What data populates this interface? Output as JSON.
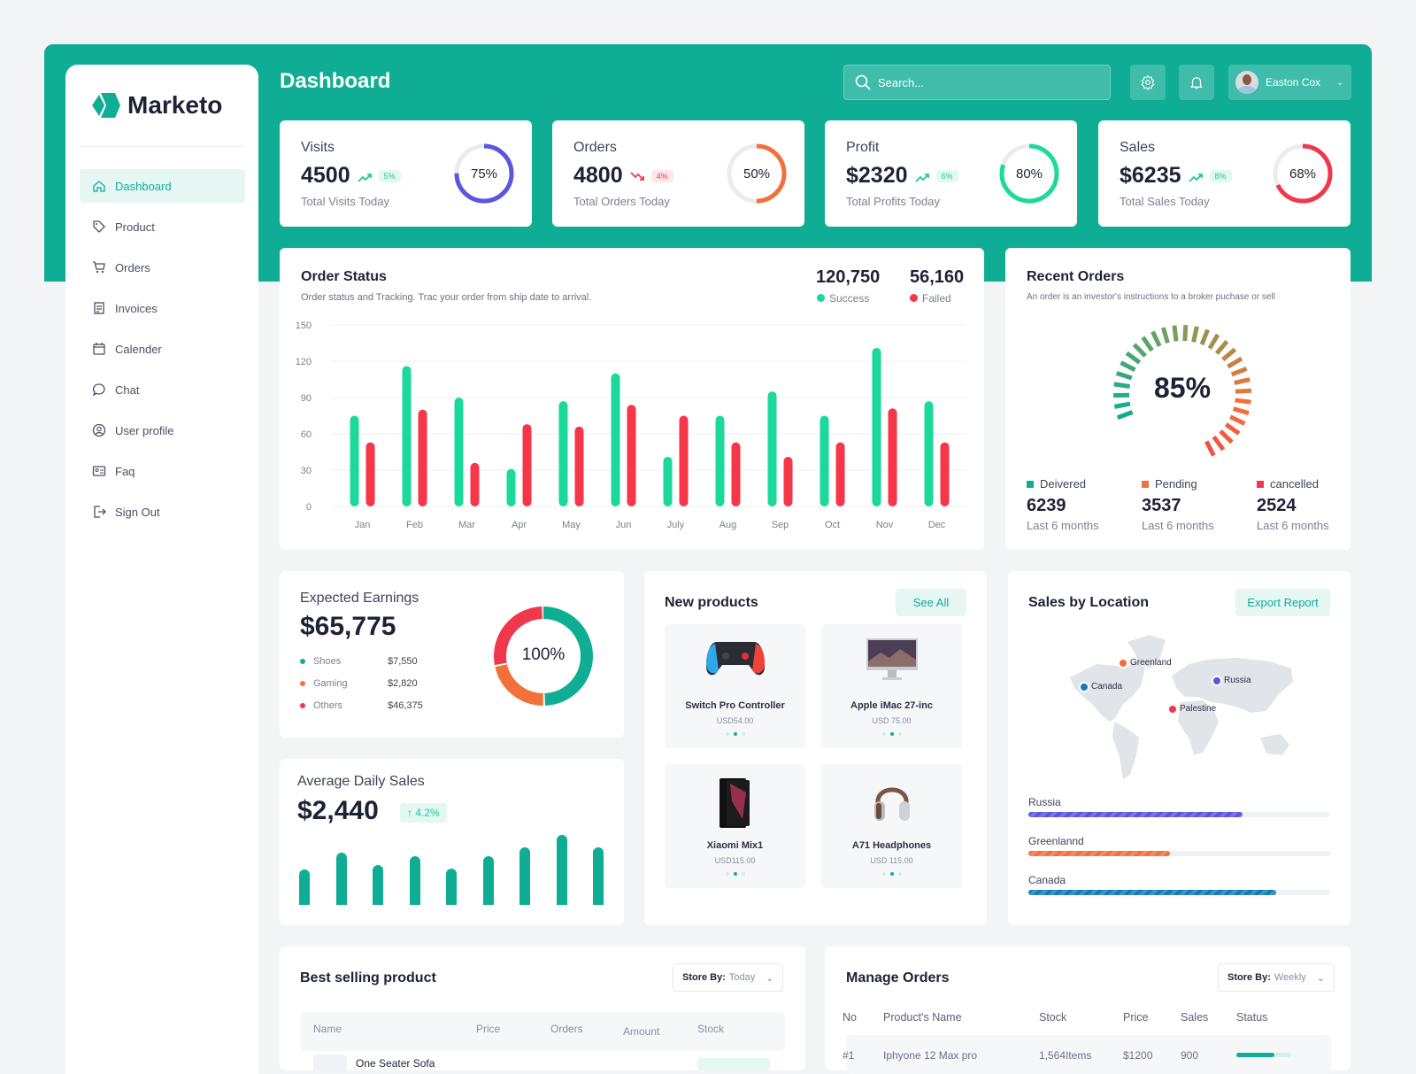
{
  "brand": {
    "name": "Marketo",
    "accent": "#10ad95"
  },
  "header": {
    "title": "Dashboard",
    "search_placeholder": "Search...",
    "user_name": "Easton Cox"
  },
  "sidebar": {
    "items": [
      {
        "label": "Dashboard",
        "icon": "home-icon",
        "active": true
      },
      {
        "label": "Product",
        "icon": "tag-icon"
      },
      {
        "label": "Orders",
        "icon": "cart-icon"
      },
      {
        "label": "Invoices",
        "icon": "invoice-icon"
      },
      {
        "label": "Calender",
        "icon": "calendar-icon"
      },
      {
        "label": "Chat",
        "icon": "chat-icon"
      },
      {
        "label": "User profile",
        "icon": "user-icon"
      },
      {
        "label": "Faq",
        "icon": "faq-icon"
      },
      {
        "label": "Sign Out",
        "icon": "signout-icon"
      }
    ]
  },
  "stats": [
    {
      "label": "Visits",
      "value": "4500",
      "trend": "up",
      "change": "5%",
      "sub": "Total Visits Today",
      "percent": 75,
      "percent_label": "75%",
      "color": "#5b55e0"
    },
    {
      "label": "Orders",
      "value": "4800",
      "trend": "down",
      "change": "4%",
      "sub": "Total Orders Today",
      "percent": 50,
      "percent_label": "50%",
      "color": "#f2713a"
    },
    {
      "label": "Profit",
      "value": "$2320",
      "trend": "up",
      "change": "6%",
      "sub": "Total Profits Today",
      "percent": 80,
      "percent_label": "80%",
      "color": "#1ed99a"
    },
    {
      "label": "Sales",
      "value": "$6235",
      "trend": "up",
      "change": "8%",
      "sub": "Total Sales Today",
      "percent": 68,
      "percent_label": "68%",
      "color": "#f0384c"
    }
  ],
  "order_status": {
    "title": "Order Status",
    "subtitle": "Order status and Tracking. Trac your order from ship date to arrival.",
    "success_total": "120,750",
    "success_label": "Success",
    "failed_total": "56,160",
    "failed_label": "Failed"
  },
  "chart_data": {
    "type": "bar",
    "categories": [
      "Jan",
      "Feb",
      "Mar",
      "Apr",
      "May",
      "Jun",
      "July",
      "Aug",
      "Sep",
      "Oct",
      "Nov",
      "Dec"
    ],
    "series": [
      {
        "name": "Success",
        "color": "#1ad99b",
        "values": [
          75,
          116,
          90,
          31,
          87,
          110,
          41,
          75,
          95,
          75,
          131,
          87
        ]
      },
      {
        "name": "Failed",
        "color": "#f63649",
        "values": [
          53,
          80,
          36,
          68,
          66,
          84,
          75,
          53,
          41,
          53,
          81,
          53
        ]
      }
    ],
    "yticks": [
      "0",
      "30",
      "60",
      "90",
      "120",
      "150"
    ],
    "ylim": [
      0,
      150
    ],
    "grid": true
  },
  "recent_orders": {
    "title": "Recent Orders",
    "subtitle": "An order is an investor's instructions to a broker puchase or sell",
    "percent": 85,
    "percent_label": "85%",
    "legend": [
      {
        "label": "Deivered",
        "value": "6239",
        "sub": "Last 6 months",
        "color": "#10ad95"
      },
      {
        "label": "Pending",
        "value": "3537",
        "sub": "Last 6 months",
        "color": "#f2713a"
      },
      {
        "label": "cancelled",
        "value": "2524",
        "sub": "Last 6 months",
        "color": "#f0384c"
      }
    ]
  },
  "earnings": {
    "title": "Expected Earnings",
    "value": "$65,775",
    "center_label": "100%",
    "items": [
      {
        "label": "Shoes",
        "value": "$7,550",
        "color": "#10ad95",
        "share": 50
      },
      {
        "label": "Gaming",
        "value": "$2,820",
        "color": "#f2713a",
        "share": 22
      },
      {
        "label": "Others",
        "value": "$46,375",
        "color": "#f0384c",
        "share": 28
      }
    ]
  },
  "daily_sales": {
    "title": "Average Daily Sales",
    "value": "$2,440",
    "change": "4.2%",
    "bars": [
      60,
      88,
      68,
      82,
      62,
      83,
      97,
      118,
      98
    ]
  },
  "new_products": {
    "title": "New products",
    "see_all": "See All",
    "items": [
      {
        "name": "Switch Pro Controller",
        "price": "USD54.00",
        "icon": "gamepad-icon"
      },
      {
        "name": "Apple iMac 27-inc",
        "price": "USD 75.00",
        "icon": "monitor-icon"
      },
      {
        "name": "Xiaomi Mix1",
        "price": "USD115.00",
        "icon": "phone-icon"
      },
      {
        "name": "A71 Headphones",
        "price": "USD 115.00",
        "icon": "headphones-icon"
      }
    ]
  },
  "locations": {
    "title": "Sales by Location",
    "export": "Export Report",
    "markers": [
      {
        "label": "Greenland",
        "color": "#f2713a"
      },
      {
        "label": "Canada",
        "color": "#1479b8"
      },
      {
        "label": "Russia",
        "color": "#5b55e0"
      },
      {
        "label": "Palestine",
        "color": "#f0384c"
      }
    ],
    "bars": [
      {
        "label": "Russia",
        "percent": 71,
        "color": "#5b55e0"
      },
      {
        "label": "Greenlannd",
        "percent": 47,
        "color": "#f2713a"
      },
      {
        "label": "Canada",
        "percent": 82,
        "color": "#1479b8"
      }
    ]
  },
  "best_selling": {
    "title": "Best selling product",
    "filter_label": "Store By:",
    "filter_value": "Today",
    "columns": [
      "Name",
      "Price",
      "Orders",
      "Amount",
      "Stock"
    ],
    "rows": [
      {
        "name": "One Seater Sofa"
      }
    ]
  },
  "manage_orders": {
    "title": "Manage Orders",
    "filter_label": "Store By:",
    "filter_value": "Weekly",
    "columns": [
      "No",
      "Product's Name",
      "Stock",
      "Price",
      "Sales",
      "Status"
    ],
    "rows": [
      {
        "no": "#1",
        "name": "Iphyone 12 Max pro",
        "stock": "1,564Items",
        "price": "$1200",
        "sales": "900",
        "status": 70
      }
    ]
  }
}
